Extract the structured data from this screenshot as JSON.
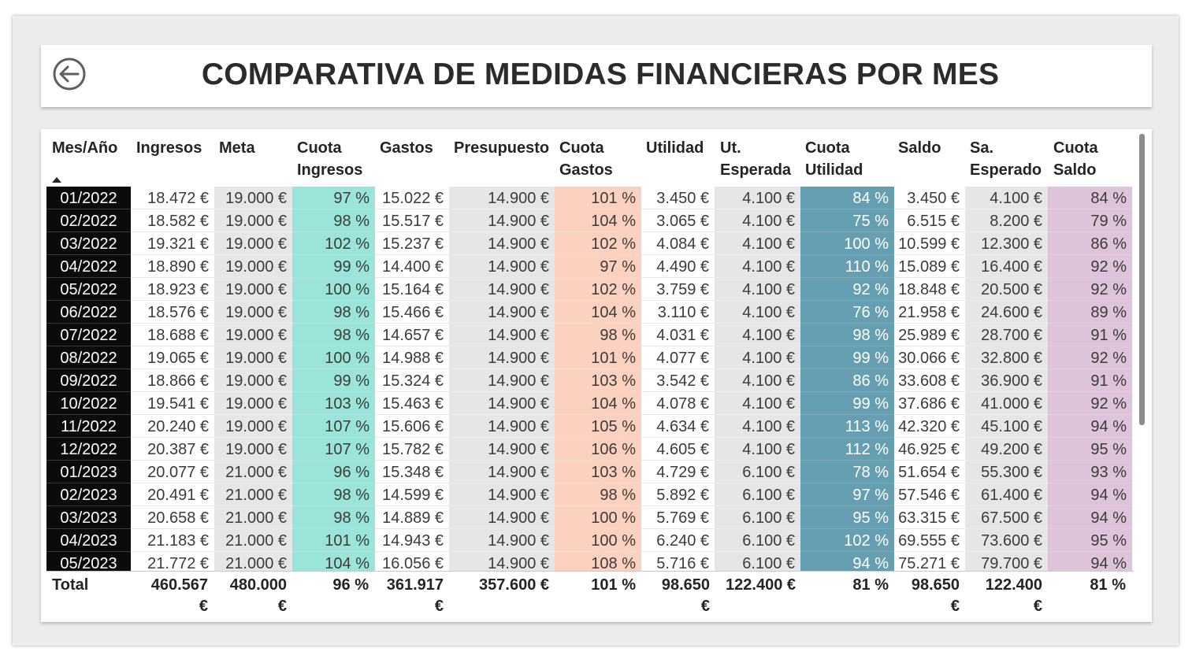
{
  "header": {
    "title": "COMPARATIVA DE MEDIDAS FINANCIERAS POR MES",
    "back_icon": "arrow-left-circle-icon"
  },
  "colors": {
    "date_bg": "#0b0b0b",
    "white": "#ffffff",
    "grey": "#e6e6e6",
    "teal": "#9ae4da",
    "salmon": "#fdd1c0",
    "blue": "#669fb1",
    "lilac": "#ddc4db"
  },
  "table": {
    "columns": [
      {
        "line1": "Mes/Año",
        "line2": ""
      },
      {
        "line1": "Ingresos",
        "line2": ""
      },
      {
        "line1": "Meta",
        "line2": ""
      },
      {
        "line1": "Cuota",
        "line2": "Ingresos"
      },
      {
        "line1": "Gastos",
        "line2": ""
      },
      {
        "line1": "Presupuesto",
        "line2": ""
      },
      {
        "line1": "Cuota",
        "line2": "Gastos"
      },
      {
        "line1": "Utilidad",
        "line2": ""
      },
      {
        "line1": "Ut.",
        "line2": "Esperada"
      },
      {
        "line1": "Cuota",
        "line2": "Utilidad"
      },
      {
        "line1": "Saldo",
        "line2": ""
      },
      {
        "line1": "Sa.",
        "line2": "Esperado"
      },
      {
        "line1": "Cuota",
        "line2": "Saldo"
      }
    ],
    "sort_icon": "sort-ascending-icon",
    "rows": [
      [
        "01/2022",
        "18.472 €",
        "19.000 €",
        "97 %",
        "15.022 €",
        "14.900 €",
        "101 %",
        "3.450 €",
        "4.100 €",
        "84 %",
        "3.450 €",
        "4.100 €",
        "84 %"
      ],
      [
        "02/2022",
        "18.582 €",
        "19.000 €",
        "98 %",
        "15.517 €",
        "14.900 €",
        "104 %",
        "3.065 €",
        "4.100 €",
        "75 %",
        "6.515 €",
        "8.200 €",
        "79 %"
      ],
      [
        "03/2022",
        "19.321 €",
        "19.000 €",
        "102 %",
        "15.237 €",
        "14.900 €",
        "102 %",
        "4.084 €",
        "4.100 €",
        "100 %",
        "10.599 €",
        "12.300 €",
        "86 %"
      ],
      [
        "04/2022",
        "18.890 €",
        "19.000 €",
        "99 %",
        "14.400 €",
        "14.900 €",
        "97 %",
        "4.490 €",
        "4.100 €",
        "110 %",
        "15.089 €",
        "16.400 €",
        "92 %"
      ],
      [
        "05/2022",
        "18.923 €",
        "19.000 €",
        "100 %",
        "15.164 €",
        "14.900 €",
        "102 %",
        "3.759 €",
        "4.100 €",
        "92 %",
        "18.848 €",
        "20.500 €",
        "92 %"
      ],
      [
        "06/2022",
        "18.576 €",
        "19.000 €",
        "98 %",
        "15.466 €",
        "14.900 €",
        "104 %",
        "3.110 €",
        "4.100 €",
        "76 %",
        "21.958 €",
        "24.600 €",
        "89 %"
      ],
      [
        "07/2022",
        "18.688 €",
        "19.000 €",
        "98 %",
        "14.657 €",
        "14.900 €",
        "98 %",
        "4.031 €",
        "4.100 €",
        "98 %",
        "25.989 €",
        "28.700 €",
        "91 %"
      ],
      [
        "08/2022",
        "19.065 €",
        "19.000 €",
        "100 %",
        "14.988 €",
        "14.900 €",
        "101 %",
        "4.077 €",
        "4.100 €",
        "99 %",
        "30.066 €",
        "32.800 €",
        "92 %"
      ],
      [
        "09/2022",
        "18.866 €",
        "19.000 €",
        "99 %",
        "15.324 €",
        "14.900 €",
        "103 %",
        "3.542 €",
        "4.100 €",
        "86 %",
        "33.608 €",
        "36.900 €",
        "91 %"
      ],
      [
        "10/2022",
        "19.541 €",
        "19.000 €",
        "103 %",
        "15.463 €",
        "14.900 €",
        "104 %",
        "4.078 €",
        "4.100 €",
        "99 %",
        "37.686 €",
        "41.000 €",
        "92 %"
      ],
      [
        "11/2022",
        "20.240 €",
        "19.000 €",
        "107 %",
        "15.606 €",
        "14.900 €",
        "105 %",
        "4.634 €",
        "4.100 €",
        "113 %",
        "42.320 €",
        "45.100 €",
        "94 %"
      ],
      [
        "12/2022",
        "20.387 €",
        "19.000 €",
        "107 %",
        "15.782 €",
        "14.900 €",
        "106 %",
        "4.605 €",
        "4.100 €",
        "112 %",
        "46.925 €",
        "49.200 €",
        "95 %"
      ],
      [
        "01/2023",
        "20.077 €",
        "21.000 €",
        "96 %",
        "15.348 €",
        "14.900 €",
        "103 %",
        "4.729 €",
        "6.100 €",
        "78 %",
        "51.654 €",
        "55.300 €",
        "93 %"
      ],
      [
        "02/2023",
        "20.491 €",
        "21.000 €",
        "98 %",
        "14.599 €",
        "14.900 €",
        "98 %",
        "5.892 €",
        "6.100 €",
        "97 %",
        "57.546 €",
        "61.400 €",
        "94 %"
      ],
      [
        "03/2023",
        "20.658 €",
        "21.000 €",
        "98 %",
        "14.889 €",
        "14.900 €",
        "100 %",
        "5.769 €",
        "6.100 €",
        "95 %",
        "63.315 €",
        "67.500 €",
        "94 %"
      ],
      [
        "04/2023",
        "21.183 €",
        "21.000 €",
        "101 %",
        "14.943 €",
        "14.900 €",
        "100 %",
        "6.240 €",
        "6.100 €",
        "102 %",
        "69.555 €",
        "73.600 €",
        "95 %"
      ],
      [
        "05/2023",
        "21.772 €",
        "21.000 €",
        "104 %",
        "16.056 €",
        "14.900 €",
        "108 %",
        "5.716 €",
        "6.100 €",
        "94 %",
        "75.271 €",
        "79.700 €",
        "94 %"
      ]
    ],
    "totals": [
      {
        "line1": "Total",
        "line2": ""
      },
      {
        "line1": "460.567",
        "line2": "€"
      },
      {
        "line1": "480.000",
        "line2": "€"
      },
      {
        "line1": "96 %",
        "line2": ""
      },
      {
        "line1": "361.917",
        "line2": "€"
      },
      {
        "line1": "357.600 €",
        "line2": ""
      },
      {
        "line1": "101 %",
        "line2": ""
      },
      {
        "line1": "98.650",
        "line2": "€"
      },
      {
        "line1": "122.400 €",
        "line2": ""
      },
      {
        "line1": "81 %",
        "line2": ""
      },
      {
        "line1": "98.650",
        "line2": "€"
      },
      {
        "line1": "122.400",
        "line2": "€"
      },
      {
        "line1": "81 %",
        "line2": ""
      }
    ]
  }
}
